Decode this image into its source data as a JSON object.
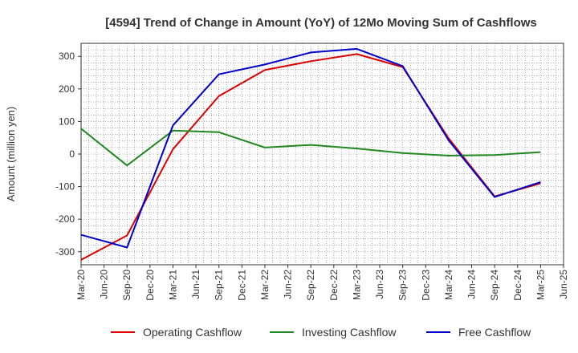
{
  "chart_data": {
    "type": "line",
    "title": "[4594]  Trend of Change in Amount (YoY) of 12Mo Moving Sum of Cashflows",
    "xlabel": "",
    "ylabel": "Amount (million yen)",
    "ylim": [
      -340,
      340
    ],
    "yticks": [
      -300,
      -200,
      -100,
      0,
      100,
      200,
      300
    ],
    "grid": true,
    "legend_position": "bottom",
    "categories": [
      "Mar-20",
      "Jun-20",
      "Sep-20",
      "Dec-20",
      "Mar-21",
      "Jun-21",
      "Sep-21",
      "Dec-21",
      "Mar-22",
      "Jun-22",
      "Sep-22",
      "Dec-22",
      "Mar-23",
      "Jun-23",
      "Sep-23",
      "Dec-23",
      "Mar-24",
      "Jun-24",
      "Sep-24",
      "Dec-24",
      "Mar-25",
      "Jun-25"
    ],
    "series": [
      {
        "name": "Operating Cashflow",
        "color": "#dd0000",
        "values": [
          -325,
          null,
          -250,
          null,
          15,
          null,
          178,
          null,
          258,
          null,
          285,
          null,
          307,
          null,
          267,
          null,
          48,
          null,
          -130,
          null,
          -90,
          null
        ]
      },
      {
        "name": "Investing Cashflow",
        "color": "#228822",
        "values": [
          78,
          null,
          -35,
          null,
          72,
          null,
          67,
          null,
          20,
          null,
          28,
          null,
          17,
          null,
          3,
          null,
          -5,
          null,
          -3,
          null,
          6,
          null
        ]
      },
      {
        "name": "Free Cashflow",
        "color": "#0000cc",
        "values": [
          -248,
          null,
          -287,
          null,
          88,
          null,
          245,
          null,
          275,
          null,
          312,
          null,
          323,
          null,
          270,
          null,
          42,
          null,
          -132,
          null,
          -86,
          null
        ]
      }
    ]
  }
}
